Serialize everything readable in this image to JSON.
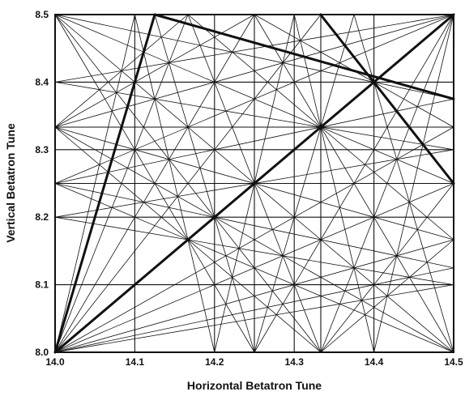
{
  "chart_data": {
    "type": "line",
    "xlabel": "Horizontal Betatron Tune",
    "ylabel": "Vertical Betatron Tune",
    "xlim": [
      14.0,
      14.5
    ],
    "ylim": [
      8.0,
      8.5
    ],
    "x_ticks": [
      "14.0",
      "14.1",
      "14.2",
      "14.3",
      "14.4",
      "14.5"
    ],
    "y_ticks": [
      "8.0",
      "8.1",
      "8.2",
      "8.3",
      "8.4",
      "8.5"
    ],
    "grid": true,
    "resonance_max_order": 6,
    "highlighted_lines": [
      {
        "x": [
          14.0,
          14.5
        ],
        "y": [
          8.0,
          8.5
        ]
      },
      {
        "x": [
          14.0,
          14.125
        ],
        "y": [
          8.0,
          8.5
        ]
      },
      {
        "x": [
          14.125,
          14.5
        ],
        "y": [
          8.5,
          8.375
        ]
      },
      {
        "x": [
          14.333,
          14.5
        ],
        "y": [
          8.5,
          8.25
        ]
      }
    ],
    "line_color": "#111111"
  }
}
